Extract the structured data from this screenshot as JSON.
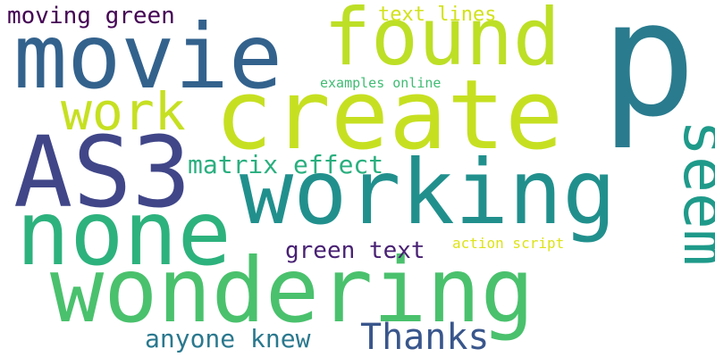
{
  "words": [
    {
      "key": "p",
      "text": "p",
      "color": "#2a7b8e",
      "orientation": "horizontal"
    },
    {
      "key": "found",
      "text": "found",
      "color": "#bddf26",
      "orientation": "horizontal"
    },
    {
      "key": "movie",
      "text": "movie",
      "color": "#33628d",
      "orientation": "horizontal"
    },
    {
      "key": "create",
      "text": "create",
      "color": "#c6e021",
      "orientation": "horizontal"
    },
    {
      "key": "as3",
      "text": "AS3",
      "color": "#404688",
      "orientation": "horizontal"
    },
    {
      "key": "working",
      "text": "working",
      "color": "#21908d",
      "orientation": "horizontal"
    },
    {
      "key": "none",
      "text": "none",
      "color": "#2db27d",
      "orientation": "horizontal"
    },
    {
      "key": "wondering",
      "text": "wondering",
      "color": "#4ac16d",
      "orientation": "horizontal"
    },
    {
      "key": "seem",
      "text": "seem",
      "color": "#1f9a8a",
      "orientation": "vertical"
    },
    {
      "key": "work",
      "text": "work",
      "color": "#c6e021",
      "orientation": "horizontal"
    },
    {
      "key": "thanks",
      "text": "Thanks",
      "color": "#39568c",
      "orientation": "horizontal"
    },
    {
      "key": "matrix_effect",
      "text": "matrix effect",
      "color": "#29af7f",
      "orientation": "horizontal"
    },
    {
      "key": "anyone_knew",
      "text": "anyone knew",
      "color": "#2a788e",
      "orientation": "horizontal"
    },
    {
      "key": "green_text",
      "text": "green text",
      "color": "#482173",
      "orientation": "horizontal"
    },
    {
      "key": "moving_green",
      "text": "moving green",
      "color": "#440154",
      "orientation": "horizontal"
    },
    {
      "key": "text_lines",
      "text": "text lines",
      "color": "#d2e21b",
      "orientation": "horizontal"
    },
    {
      "key": "action_script",
      "text": "action script",
      "color": "#dde318",
      "orientation": "horizontal"
    },
    {
      "key": "examples_online",
      "text": "examples online",
      "color": "#3fbc73",
      "orientation": "horizontal"
    }
  ]
}
